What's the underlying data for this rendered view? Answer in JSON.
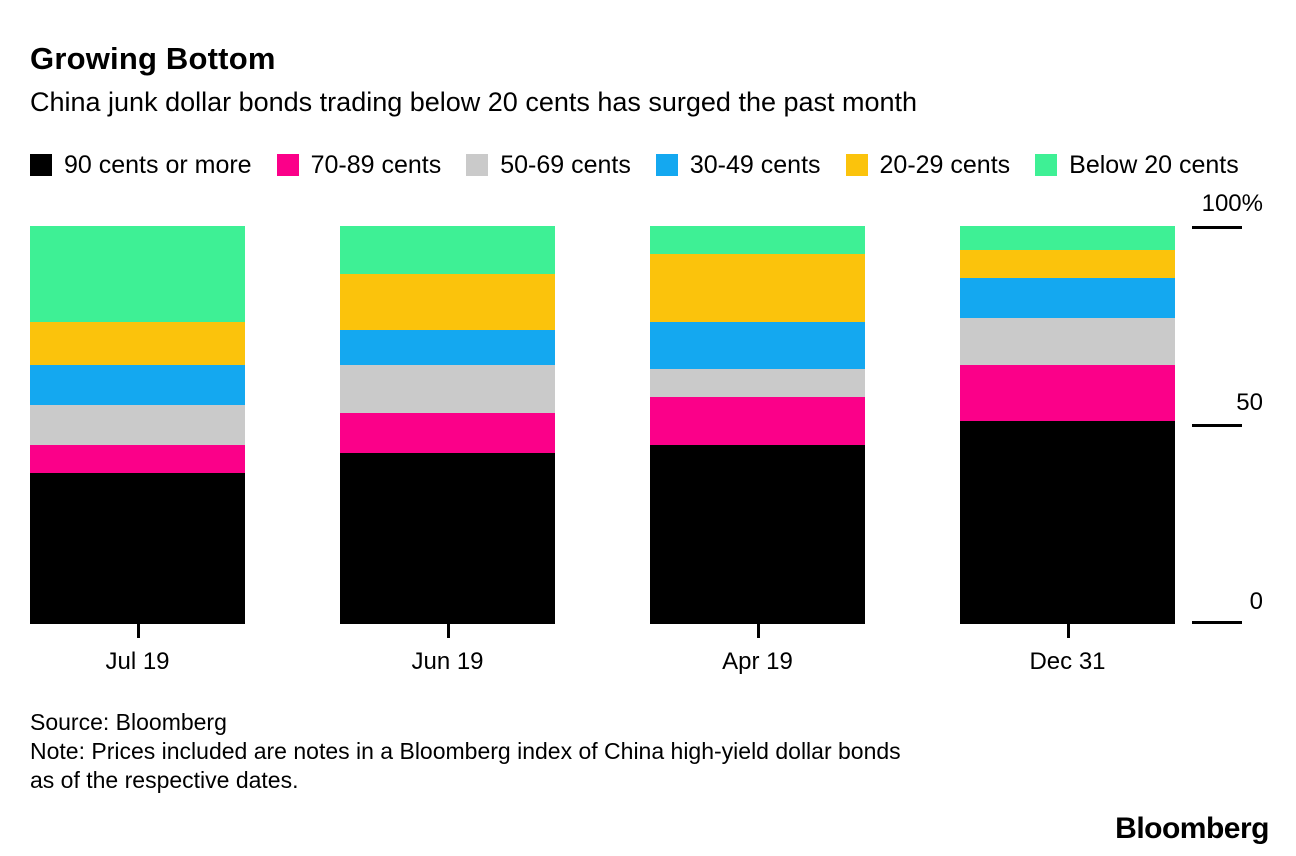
{
  "header": {
    "title": "Growing Bottom",
    "subtitle": "China junk dollar bonds trading below 20 cents has surged the past month"
  },
  "chart_data": {
    "type": "bar",
    "stacked": true,
    "unit": "percent",
    "title": "Growing Bottom",
    "subtitle": "China junk dollar bonds trading below 20 cents has surged the past month",
    "categories": [
      "Jul 19",
      "Jun 19",
      "Apr 19",
      "Dec 31"
    ],
    "series": [
      {
        "name": "90 cents or more",
        "color": "#000000",
        "values": [
          38,
          43,
          45,
          51
        ]
      },
      {
        "name": "70-89 cents",
        "color": "#fb0089",
        "values": [
          7,
          10,
          12,
          14
        ]
      },
      {
        "name": "50-69 cents",
        "color": "#cacaca",
        "values": [
          10,
          12,
          7,
          12
        ]
      },
      {
        "name": "30-49 cents",
        "color": "#14a8f0",
        "values": [
          10,
          9,
          12,
          10
        ]
      },
      {
        "name": "20-29 cents",
        "color": "#fbc30c",
        "values": [
          11,
          14,
          17,
          7
        ]
      },
      {
        "name": "Below 20 cents",
        "color": "#3ef095",
        "values": [
          24,
          12,
          7,
          6
        ]
      }
    ],
    "stack_order_bottom_to_top": [
      "90 cents or more",
      "70-89 cents",
      "50-69 cents",
      "30-49 cents",
      "20-29 cents",
      "Below 20 cents"
    ],
    "ylim": [
      0,
      100
    ],
    "y_axis": {
      "side": "right",
      "ticks": [
        {
          "label": "100%",
          "value": 100
        },
        {
          "label": "50",
          "value": 50
        },
        {
          "label": "0",
          "value": 0
        }
      ]
    },
    "legend_position": "top",
    "grid": false
  },
  "footer": {
    "source": "Source: Bloomberg",
    "note_lines": [
      "Note: Prices included are notes in a Bloomberg index of China high-yield dollar bonds",
      "as of the respective dates."
    ],
    "logo": "Bloomberg"
  }
}
